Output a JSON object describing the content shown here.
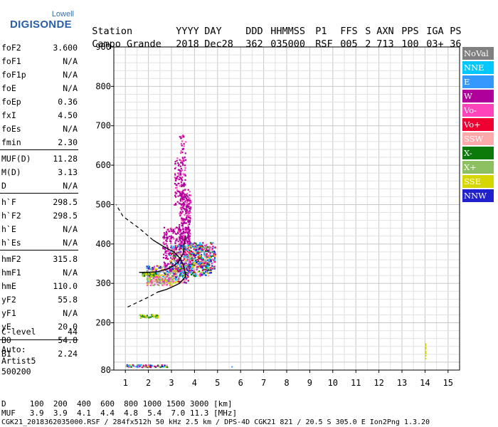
{
  "logo": {
    "brand": "Lowell",
    "name": "DIGISONDE"
  },
  "header": {
    "labels": [
      "Station",
      "YYYY",
      "DAY",
      "DDD",
      "HHMMSS",
      "P1",
      "FFS",
      "S",
      "AXN",
      "PPS",
      "IGA",
      "PS"
    ],
    "values": [
      "Campo Grande",
      "2018",
      "Dec28",
      "362",
      "035000",
      "RSF",
      "005",
      "2",
      "713",
      "100",
      "03+",
      "36"
    ]
  },
  "parameters": [
    {
      "label": "foF2",
      "value": "3.600"
    },
    {
      "label": "foF1",
      "value": "N/A"
    },
    {
      "label": "foF1p",
      "value": "N/A"
    },
    {
      "label": "foE",
      "value": "N/A"
    },
    {
      "label": "foEp",
      "value": "0.36"
    },
    {
      "label": "fxI",
      "value": "4.50"
    },
    {
      "label": "foEs",
      "value": "N/A"
    },
    {
      "label": "fmin",
      "value": "2.30"
    },
    {
      "label": "MUF(D)",
      "value": "11.28"
    },
    {
      "label": "M(D)",
      "value": "3.13"
    },
    {
      "label": "D",
      "value": "N/A"
    },
    {
      "label": "h`F",
      "value": "298.5"
    },
    {
      "label": "h`F2",
      "value": "298.5"
    },
    {
      "label": "h`E",
      "value": "N/A"
    },
    {
      "label": "h`Es",
      "value": "N/A"
    },
    {
      "label": "hmF2",
      "value": "315.8"
    },
    {
      "label": "hmF1",
      "value": "N/A"
    },
    {
      "label": "hmE",
      "value": "110.0"
    },
    {
      "label": "yF2",
      "value": "55.8"
    },
    {
      "label": "yF1",
      "value": "N/A"
    },
    {
      "label": "yE",
      "value": "20.0"
    },
    {
      "label": "B0",
      "value": "54.8"
    },
    {
      "label": "B1",
      "value": "2.24"
    },
    {
      "label": "C-level",
      "value": "44"
    }
  ],
  "auto": {
    "line1": "Auto:",
    "line2": "Artist5",
    "line3": "500200"
  },
  "legend": [
    {
      "label": "NoVal",
      "color": "#808080"
    },
    {
      "label": "NNE",
      "color": "#00c8ff"
    },
    {
      "label": "E",
      "color": "#3399ff"
    },
    {
      "label": "W",
      "color": "#b0009b"
    },
    {
      "label": "Vo-",
      "color": "#ff44bb"
    },
    {
      "label": "Vo+",
      "color": "#ee0033"
    },
    {
      "label": "SSW",
      "color": "#ffaaaa"
    },
    {
      "label": "X-",
      "color": "#0b7a0b"
    },
    {
      "label": "X+",
      "color": "#8cc060"
    },
    {
      "label": "SSE",
      "color": "#d6d600"
    },
    {
      "label": "NNW",
      "color": "#2020cc"
    }
  ],
  "bottom": {
    "d_line": "D     100  200  400  600  800 1000 1500 3000 [km]",
    "muf_line": "MUF   3.9  3.9  4.1  4.4  4.8  5.4  7.0 11.3 [MHz]",
    "file_line": "CGK21_2018362035000.RSF / 284fx512h 50 kHz 2.5 km / DPS-4D CGK21 821 / 20.5 S 305.0 E Ion2Png 1.3.20"
  },
  "chart_data": {
    "type": "scatter",
    "xlim": [
      0.5,
      15.5
    ],
    "ylim": [
      80,
      900
    ],
    "x_ticks": [
      1,
      2,
      3,
      4,
      5,
      6,
      7,
      8,
      9,
      10,
      11,
      12,
      13,
      14,
      15
    ],
    "y_ticks": [
      80,
      200,
      300,
      400,
      500,
      600,
      700,
      800,
      900
    ],
    "grid": true,
    "profile": {
      "freq": [
        1.1,
        1.6,
        2.0,
        2.4,
        2.8,
        3.1,
        3.35,
        3.5,
        3.6,
        3.6,
        3.55,
        3.4,
        3.1,
        2.7,
        2.2,
        1.6,
        0.9,
        0.6
      ],
      "height": [
        240,
        254,
        265,
        278,
        285,
        293,
        300,
        310,
        316,
        325,
        340,
        362,
        380,
        392,
        410,
        440,
        470,
        500
      ]
    },
    "trace_f": [
      1.6,
      2.0,
      2.4,
      2.8,
      3.1,
      3.3,
      3.5,
      3.6
    ],
    "trace_h": [
      328,
      328,
      330,
      336,
      345,
      355,
      375,
      420
    ]
  }
}
